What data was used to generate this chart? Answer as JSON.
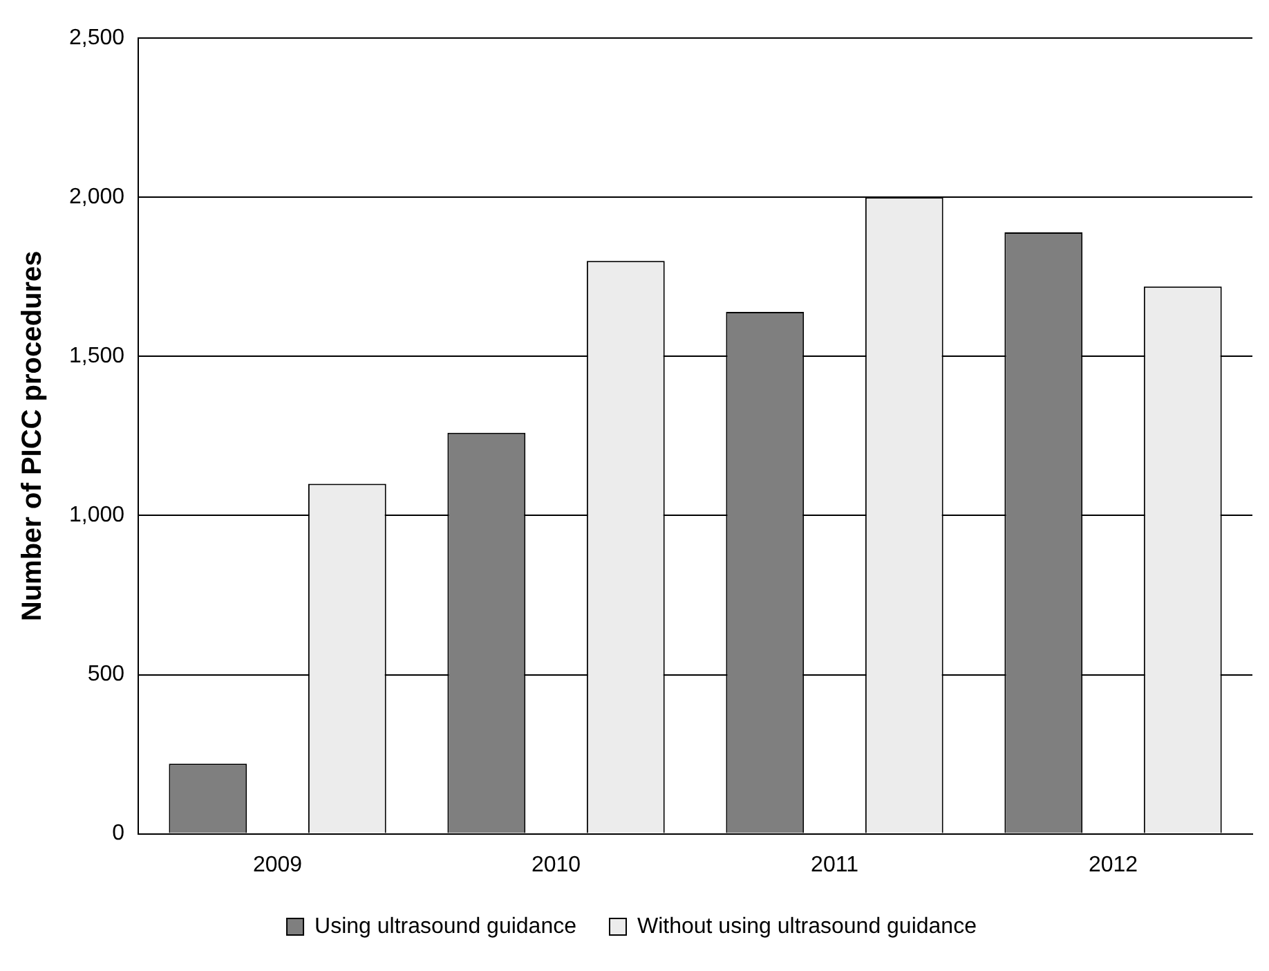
{
  "chart_data": {
    "type": "bar",
    "ylabel": "Number of PICC procedures",
    "categories": [
      "2009",
      "2010",
      "2011",
      "2012"
    ],
    "series": [
      {
        "name": "Using ultrasound guidance",
        "color": "#7f7f7f",
        "values": [
          220,
          1260,
          1640,
          1890
        ]
      },
      {
        "name": "Without using ultrasound guidance",
        "color": "#ececec",
        "values": [
          1100,
          1800,
          2000,
          1720
        ]
      }
    ],
    "ylim": [
      0,
      2500
    ],
    "yticks": [
      {
        "value": 0,
        "label": "0"
      },
      {
        "value": 500,
        "label": "500"
      },
      {
        "value": 1000,
        "label": "1,000"
      },
      {
        "value": 1500,
        "label": "1,500"
      },
      {
        "value": 2000,
        "label": "2,000"
      },
      {
        "value": 2500,
        "label": "2,500"
      }
    ],
    "grid": "y",
    "legend": "bottom"
  }
}
